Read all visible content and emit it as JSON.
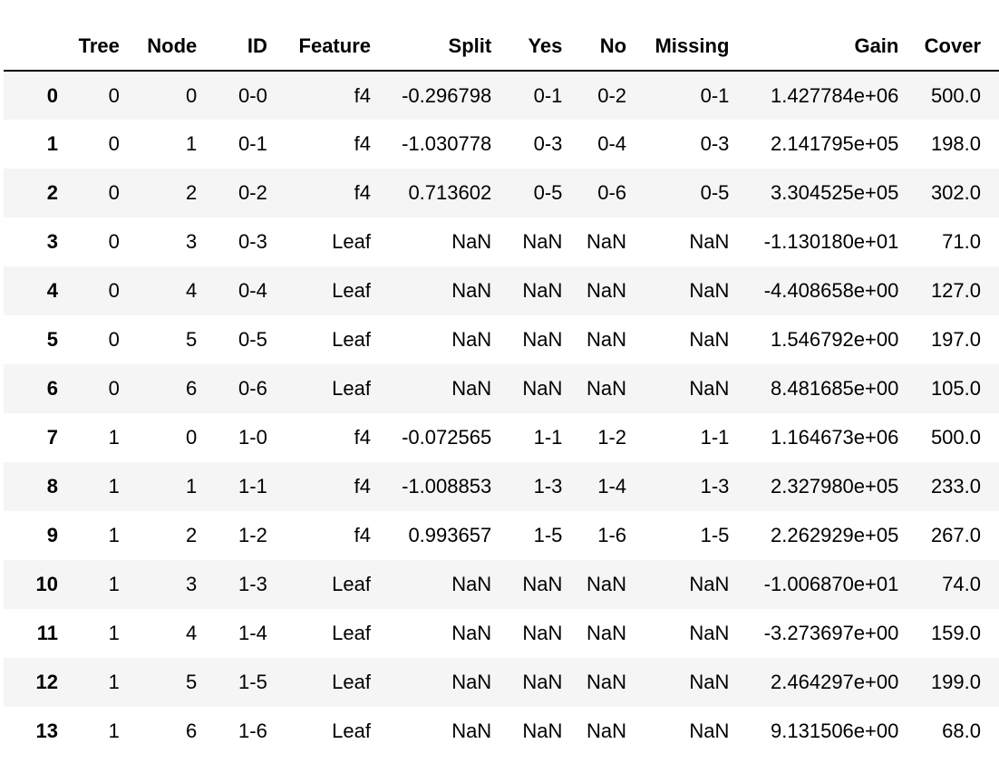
{
  "table": {
    "columns": [
      "Tree",
      "Node",
      "ID",
      "Feature",
      "Split",
      "Yes",
      "No",
      "Missing",
      "Gain",
      "Cover"
    ],
    "rows": [
      {
        "index": "0",
        "cells": [
          "0",
          "0",
          "0-0",
          "f4",
          "-0.296798",
          "0-1",
          "0-2",
          "0-1",
          "1.427784e+06",
          "500.0"
        ]
      },
      {
        "index": "1",
        "cells": [
          "0",
          "1",
          "0-1",
          "f4",
          "-1.030778",
          "0-3",
          "0-4",
          "0-3",
          "2.141795e+05",
          "198.0"
        ]
      },
      {
        "index": "2",
        "cells": [
          "0",
          "2",
          "0-2",
          "f4",
          "0.713602",
          "0-5",
          "0-6",
          "0-5",
          "3.304525e+05",
          "302.0"
        ]
      },
      {
        "index": "3",
        "cells": [
          "0",
          "3",
          "0-3",
          "Leaf",
          "NaN",
          "NaN",
          "NaN",
          "NaN",
          "-1.130180e+01",
          "71.0"
        ]
      },
      {
        "index": "4",
        "cells": [
          "0",
          "4",
          "0-4",
          "Leaf",
          "NaN",
          "NaN",
          "NaN",
          "NaN",
          "-4.408658e+00",
          "127.0"
        ]
      },
      {
        "index": "5",
        "cells": [
          "0",
          "5",
          "0-5",
          "Leaf",
          "NaN",
          "NaN",
          "NaN",
          "NaN",
          "1.546792e+00",
          "197.0"
        ]
      },
      {
        "index": "6",
        "cells": [
          "0",
          "6",
          "0-6",
          "Leaf",
          "NaN",
          "NaN",
          "NaN",
          "NaN",
          "8.481685e+00",
          "105.0"
        ]
      },
      {
        "index": "7",
        "cells": [
          "1",
          "0",
          "1-0",
          "f4",
          "-0.072565",
          "1-1",
          "1-2",
          "1-1",
          "1.164673e+06",
          "500.0"
        ]
      },
      {
        "index": "8",
        "cells": [
          "1",
          "1",
          "1-1",
          "f4",
          "-1.008853",
          "1-3",
          "1-4",
          "1-3",
          "2.327980e+05",
          "233.0"
        ]
      },
      {
        "index": "9",
        "cells": [
          "1",
          "2",
          "1-2",
          "f4",
          "0.993657",
          "1-5",
          "1-6",
          "1-5",
          "2.262929e+05",
          "267.0"
        ]
      },
      {
        "index": "10",
        "cells": [
          "1",
          "3",
          "1-3",
          "Leaf",
          "NaN",
          "NaN",
          "NaN",
          "NaN",
          "-1.006870e+01",
          "74.0"
        ]
      },
      {
        "index": "11",
        "cells": [
          "1",
          "4",
          "1-4",
          "Leaf",
          "NaN",
          "NaN",
          "NaN",
          "NaN",
          "-3.273697e+00",
          "159.0"
        ]
      },
      {
        "index": "12",
        "cells": [
          "1",
          "5",
          "1-5",
          "Leaf",
          "NaN",
          "NaN",
          "NaN",
          "NaN",
          "2.464297e+00",
          "199.0"
        ]
      },
      {
        "index": "13",
        "cells": [
          "1",
          "6",
          "1-6",
          "Leaf",
          "NaN",
          "NaN",
          "NaN",
          "NaN",
          "9.131506e+00",
          "68.0"
        ]
      }
    ]
  }
}
